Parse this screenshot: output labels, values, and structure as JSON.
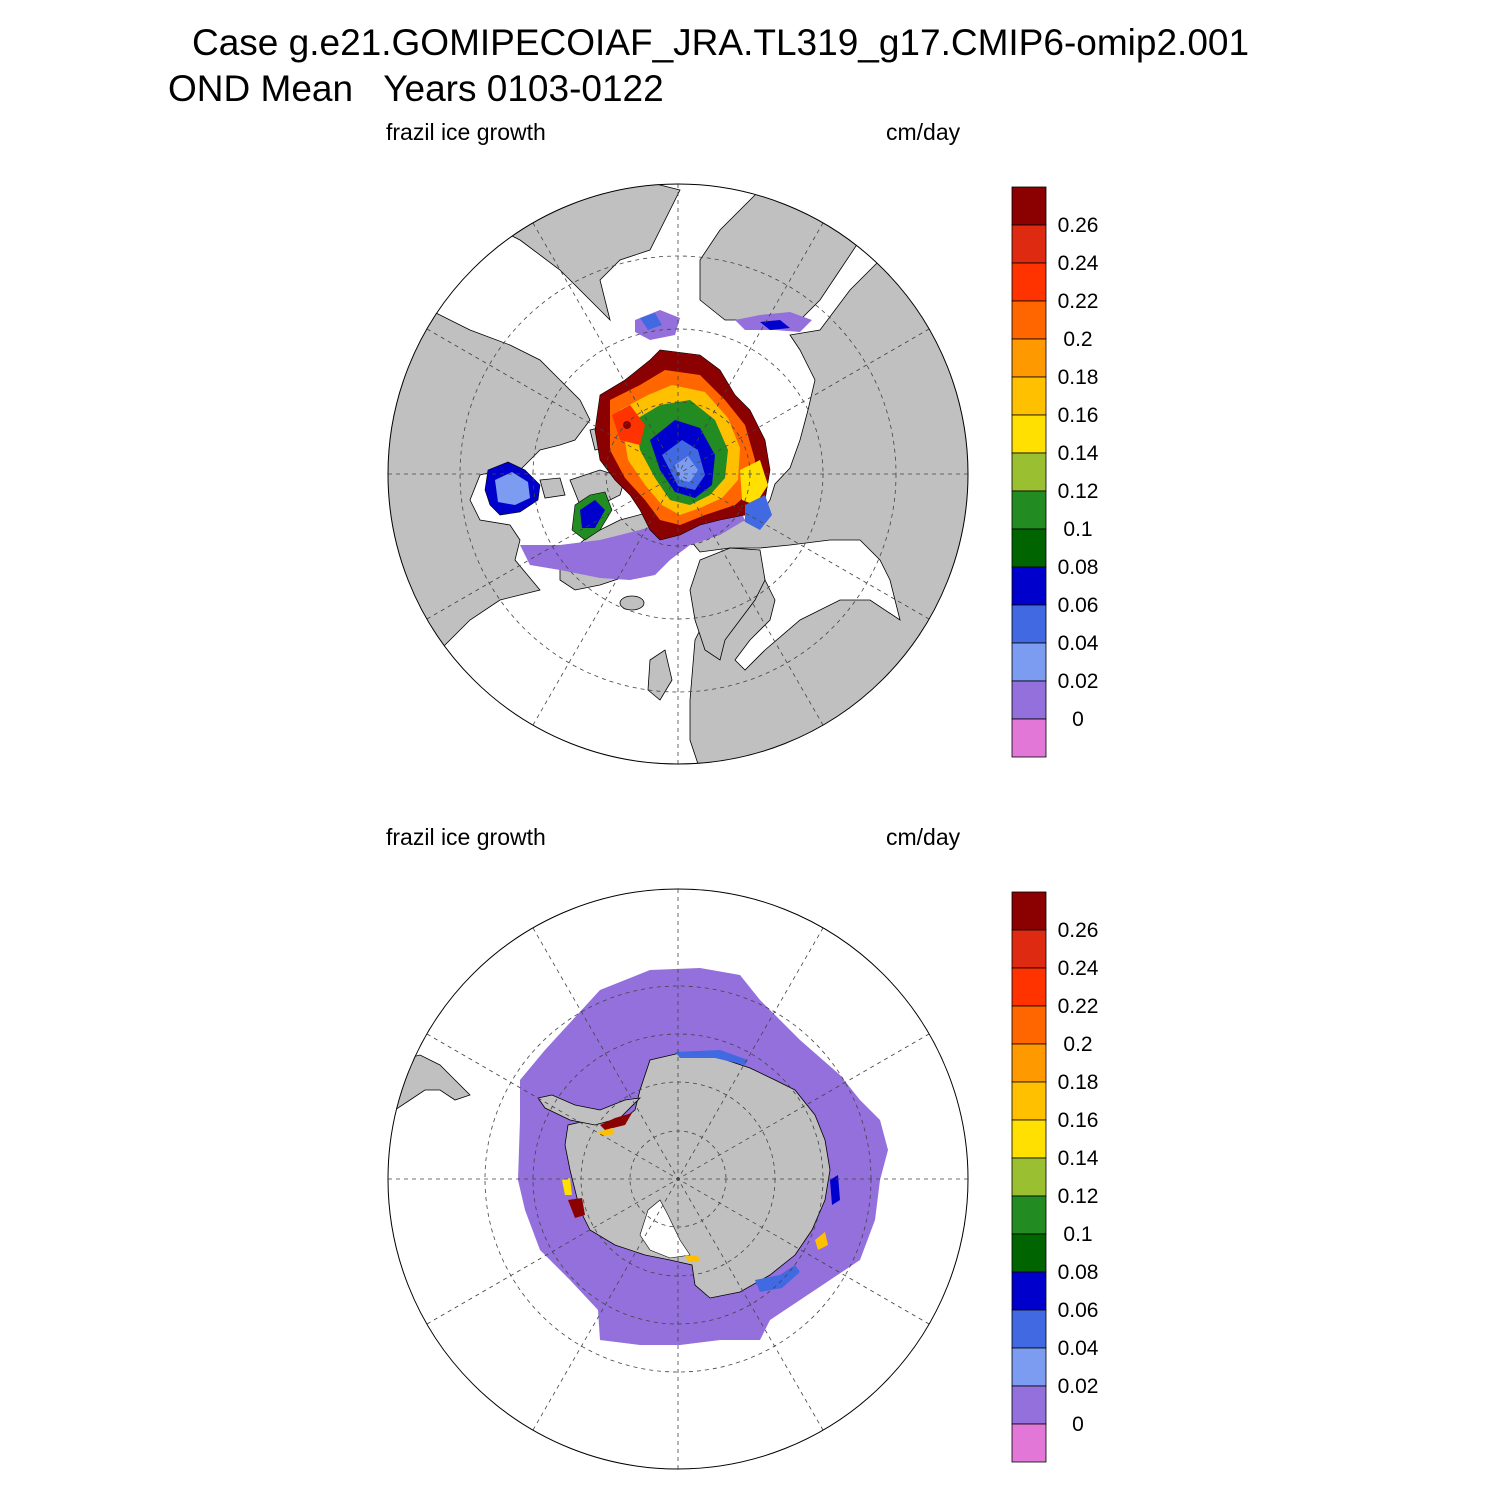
{
  "title": {
    "line1": "Case g.e21.GOMIPECOIAF_JRA.TL319_g17.CMIP6-omip2.001",
    "line2": "OND Mean   Years 0103-0122"
  },
  "panels": [
    {
      "hemisphere": "north",
      "variable_label": "frazil ice growth",
      "units_label": "cm/day"
    },
    {
      "hemisphere": "south",
      "variable_label": "frazil ice growth",
      "units_label": "cm/day"
    }
  ],
  "colorbar": {
    "labels": [
      "0.26",
      "0.24",
      "0.22",
      "0.2",
      "0.18",
      "0.16",
      "0.14",
      "0.12",
      "0.1",
      "0.08",
      "0.06",
      "0.04",
      "0.02",
      "0"
    ],
    "colors": [
      "#8b0000",
      "#dd2a10",
      "#ff3300",
      "#ff6600",
      "#ff9900",
      "#ffc000",
      "#ffe000",
      "#9abf30",
      "#228b22",
      "#006400",
      "#0000cd",
      "#4169e1",
      "#7b9cf0",
      "#9370db",
      "#e377d8"
    ]
  },
  "map_colors": {
    "land": "#c0c0c0",
    "ocean_no_data": "#ffffff",
    "grid": "#444444"
  }
}
